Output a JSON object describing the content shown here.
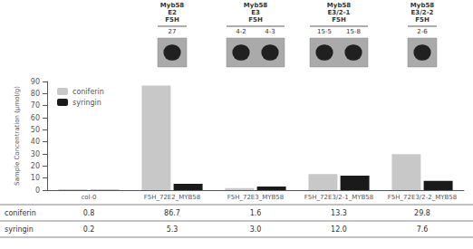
{
  "chart_data": {
    "type": "bar",
    "categories": [
      "col-0",
      "F5H_72E2_MYB58",
      "F5H_72E3_MYB58",
      "F5H_72E3/2-1_MYB58",
      "F5H_72E3/2-2_MYB58"
    ],
    "series": [
      {
        "name": "coniferin",
        "color": "#c8c8c8",
        "values": [
          0.8,
          86.7,
          1.6,
          13.3,
          29.8
        ]
      },
      {
        "name": "syringin",
        "color": "#1a1a1a",
        "values": [
          0.2,
          5.3,
          3.0,
          12.0,
          7.6
        ]
      }
    ],
    "ylabel": "Sample Concentration (μmol/g)",
    "ylim": [
      0,
      90
    ],
    "yticks": [
      0,
      10,
      20,
      30,
      40,
      50,
      60,
      70,
      80,
      90
    ],
    "grid": false,
    "legend": "upper left",
    "table": {
      "rows": [
        {
          "label": "coniferin",
          "cells": [
            "0.8",
            "86.7",
            "1.6",
            "13.3",
            "29.8"
          ]
        },
        {
          "label": "syringin",
          "cells": [
            "0.2",
            "5.3",
            "3.0",
            "12.0",
            "7.6"
          ]
        }
      ]
    },
    "annotations": [
      {
        "text": "Myb58\nE2\nF5H",
        "lanes": [
          "27"
        ],
        "color": "#aaaaaa",
        "band_color": "#111111"
      },
      {
        "text": "Myb58\nE3\nF5H",
        "lanes": [
          "4-2",
          "4-3"
        ],
        "color": "#aaaaaa",
        "band_color": "#111111"
      },
      {
        "text": "Myb58\nE3/2-1\nF5H",
        "lanes": [
          "15-5",
          "15-8"
        ],
        "color": "#aaaaaa",
        "band_color": "#111111"
      },
      {
        "text": "Myb58\nE3/2-2\nF5H",
        "lanes": [
          "2-6"
        ],
        "color": "#aaaaaa",
        "band_color": "#111111"
      }
    ]
  }
}
